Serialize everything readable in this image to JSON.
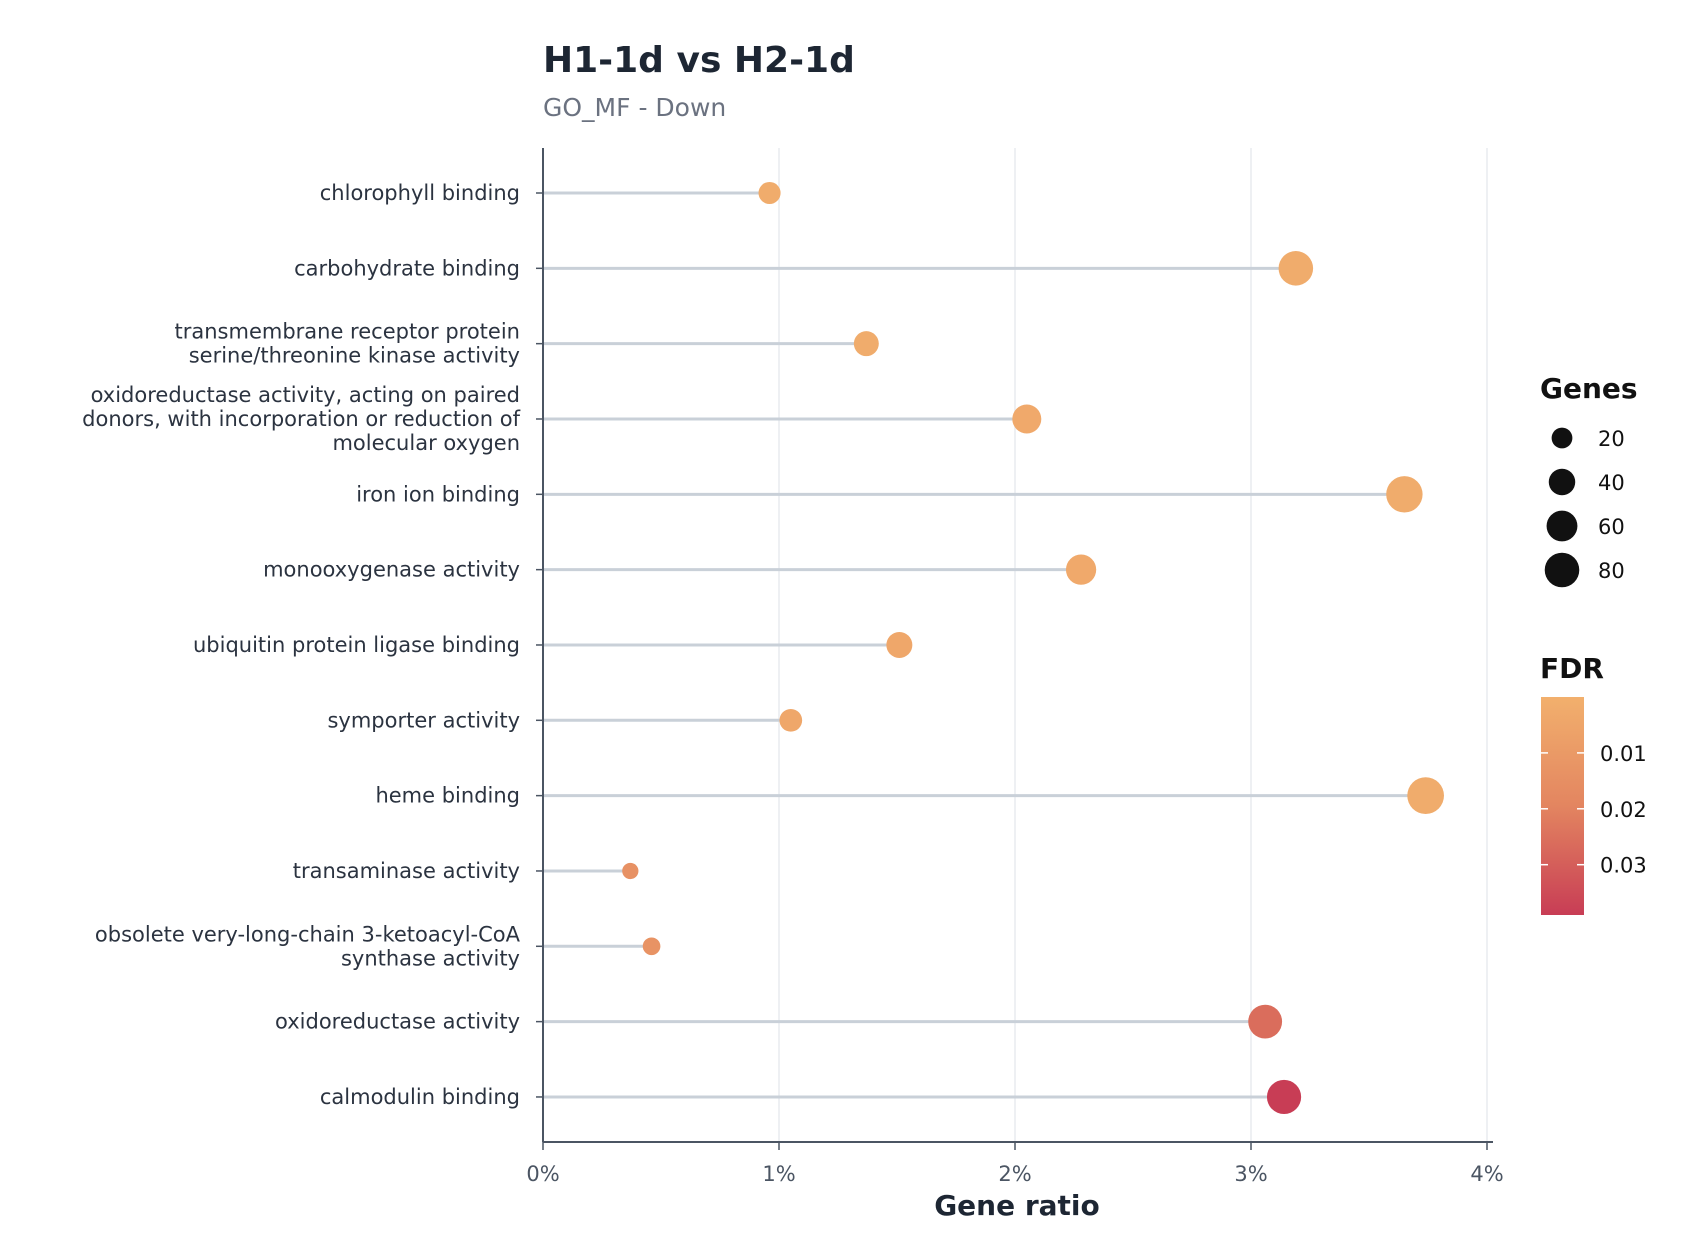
{
  "chart_data": {
    "type": "scatter",
    "style": "lollipop",
    "title": "H1-1d vs H2-1d",
    "subtitle": "GO_MF - Down",
    "xlabel": "Gene ratio",
    "xlim": [
      0,
      4
    ],
    "x_ticks": [
      "0%",
      "1%",
      "2%",
      "3%",
      "4%"
    ],
    "x_unit": "%",
    "grid": "vertical",
    "categories": [
      [
        "chlorophyll binding"
      ],
      [
        "carbohydrate binding"
      ],
      [
        "transmembrane receptor protein",
        "serine/threonine kinase activity"
      ],
      [
        "oxidoreductase activity, acting on paired",
        "donors, with incorporation or reduction of",
        "molecular oxygen"
      ],
      [
        "iron ion binding"
      ],
      [
        "monooxygenase activity"
      ],
      [
        "ubiquitin protein ligase binding"
      ],
      [
        "symporter activity"
      ],
      [
        "heme binding"
      ],
      [
        "transaminase activity"
      ],
      [
        "obsolete very-long-chain 3-ketoacyl-CoA",
        "synthase activity"
      ],
      [
        "oxidoreductase activity"
      ],
      [
        "calmodulin binding"
      ]
    ],
    "points": [
      {
        "gene_ratio": 0.96,
        "genes": 24,
        "fdr": 0.002
      },
      {
        "gene_ratio": 3.19,
        "genes": 80,
        "fdr": 0.002
      },
      {
        "gene_ratio": 1.37,
        "genes": 34,
        "fdr": 0.002
      },
      {
        "gene_ratio": 2.05,
        "genes": 51,
        "fdr": 0.003
      },
      {
        "gene_ratio": 3.65,
        "genes": 91,
        "fdr": 0.002
      },
      {
        "gene_ratio": 2.28,
        "genes": 57,
        "fdr": 0.003
      },
      {
        "gene_ratio": 1.51,
        "genes": 38,
        "fdr": 0.004
      },
      {
        "gene_ratio": 1.05,
        "genes": 26,
        "fdr": 0.004
      },
      {
        "gene_ratio": 3.74,
        "genes": 93,
        "fdr": 0.002
      },
      {
        "gene_ratio": 0.37,
        "genes": 9,
        "fdr": 0.014
      },
      {
        "gene_ratio": 0.46,
        "genes": 12,
        "fdr": 0.013
      },
      {
        "gene_ratio": 3.06,
        "genes": 76,
        "fdr": 0.026
      },
      {
        "gene_ratio": 3.14,
        "genes": 78,
        "fdr": 0.039
      }
    ],
    "legend": {
      "placement": "right",
      "size_title": "Genes",
      "size_values": [
        20,
        40,
        60,
        80
      ],
      "color_title": "FDR",
      "color_ticks": [
        0.01,
        0.02,
        0.03
      ],
      "color_tick_labels": [
        "0.01",
        "0.02",
        "0.03"
      ],
      "color_domain": [
        0.0,
        0.039
      ],
      "color_low": "#f2b06d",
      "color_mid": "#e38560",
      "color_high": "#c83d55"
    },
    "colors": {
      "stem": "#c9d0d8",
      "axis": "#4b5563",
      "grid": "#e8ebef",
      "size_legend_dot": "#111111"
    }
  }
}
